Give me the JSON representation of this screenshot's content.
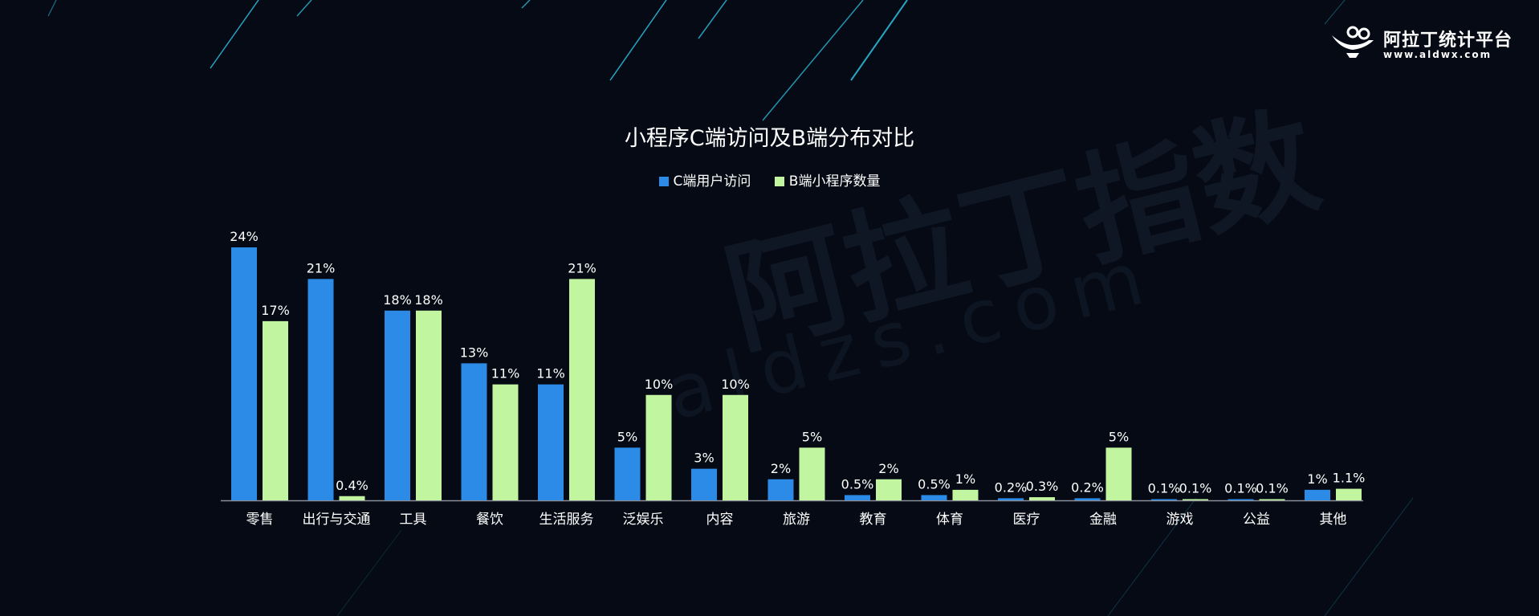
{
  "brand": {
    "name": "阿拉丁统计平台",
    "url": "www.aldwx.com"
  },
  "watermark": {
    "text": "阿拉丁指数",
    "url": "aldzs.com"
  },
  "colors": {
    "background": "#050a14",
    "series_c": "#2b8be6",
    "series_b": "#c2f5a0",
    "streak": "#2bb6d6"
  },
  "chart_data": {
    "type": "bar",
    "title": "小程序C端访问及B端分布对比",
    "legend_position": "top-center",
    "grid": false,
    "ylim": [
      0,
      25
    ],
    "categories": [
      "零售",
      "出行与交通",
      "工具",
      "餐饮",
      "生活服务",
      "泛娱乐",
      "内容",
      "旅游",
      "教育",
      "体育",
      "医疗",
      "金融",
      "游戏",
      "公益",
      "其他"
    ],
    "series": [
      {
        "name": "C端用户访问",
        "values": [
          24,
          21,
          18,
          13,
          11,
          5,
          3,
          2,
          0.5,
          0.5,
          0.2,
          0.2,
          0.1,
          0.1,
          1
        ],
        "labels": [
          "24%",
          "21%",
          "18%",
          "13%",
          "11%",
          "5%",
          "3%",
          "2%",
          "0.5%",
          "0.5%",
          "0.2%",
          "0.2%",
          "0.1%",
          "0.1%",
          "1%"
        ]
      },
      {
        "name": "B端小程序数量",
        "values": [
          17,
          0.4,
          18,
          11,
          21,
          10,
          10,
          5,
          2,
          1,
          0.3,
          5,
          0.1,
          0.1,
          1.1
        ],
        "labels": [
          "17%",
          "0.4%",
          "18%",
          "11%",
          "21%",
          "10%",
          "10%",
          "5%",
          "2%",
          "1%",
          "0.3%",
          "5%",
          "0.1%",
          "0.1%",
          "1.1%"
        ]
      }
    ]
  }
}
